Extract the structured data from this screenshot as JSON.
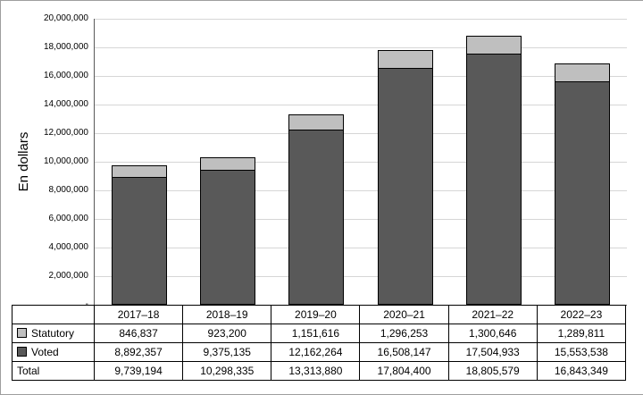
{
  "chart_data": {
    "type": "bar",
    "stacked": true,
    "title": "",
    "xlabel": "",
    "ylabel": "En dollars",
    "ylim": [
      0,
      20000000
    ],
    "ytick_interval": 2000000,
    "ytick_labels": [
      "20,000,000",
      "18,000,000",
      "16,000,000",
      "14,000,000",
      "12,000,000",
      "10,000,000",
      "8,000,000",
      "6,000,000",
      "4,000,000",
      "2,000,000",
      "-"
    ],
    "grid": true,
    "legend_position": "table",
    "categories": [
      "2017–18",
      "2018–19",
      "2019–20",
      "2020–21",
      "2021–22",
      "2022–23"
    ],
    "series": [
      {
        "name": "Statutory",
        "color": "#bfbfbf",
        "values": [
          846837,
          923200,
          1151616,
          1296253,
          1300646,
          1289811
        ],
        "labels": [
          "846,837",
          "923,200",
          "1,151,616",
          "1,296,253",
          "1,300,646",
          "1,289,811"
        ]
      },
      {
        "name": "Voted",
        "color": "#595959",
        "values": [
          8892357,
          9375135,
          12162264,
          16508147,
          17504933,
          15553538
        ],
        "labels": [
          "8,892,357",
          "9,375,135",
          "12,162,264",
          "16,508,147",
          "17,504,933",
          "15,553,538"
        ]
      }
    ],
    "total": {
      "name": "Total",
      "values": [
        9739194,
        10298335,
        13313880,
        17804400,
        18805579,
        16843349
      ],
      "labels": [
        "9,739,194",
        "10,298,335",
        "13,313,880",
        "17,804,400",
        "18,805,579",
        "16,843,349"
      ]
    }
  },
  "colors": {
    "statutory": "#bfbfbf",
    "voted": "#595959",
    "gridline": "#d6d6d6",
    "axis": "#595959",
    "border": "#9e9e9e"
  }
}
